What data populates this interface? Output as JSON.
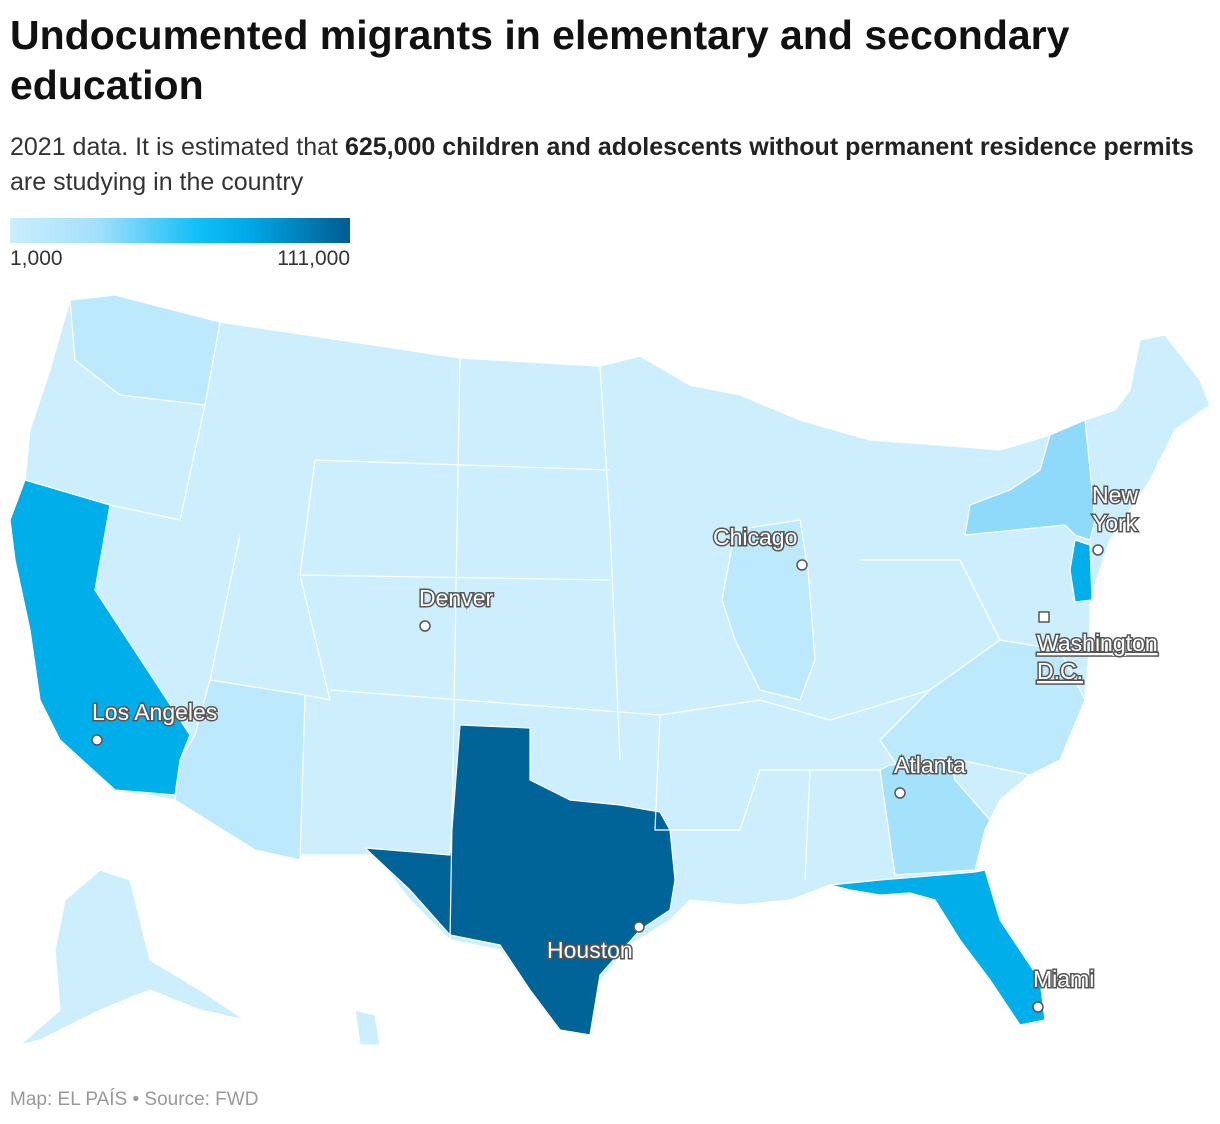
{
  "title": "Undocumented migrants in elementary and secondary education",
  "subtitle": {
    "pre": "2021 data. It is estimated that ",
    "bold": "625,000 children and adolescents without permanent residence permits",
    "post": " are studying in the country"
  },
  "legend": {
    "min": "1,000",
    "max": "111,000"
  },
  "colors": {
    "base": "#cdeffd",
    "light": "#bde9fc",
    "mid": "#a4e1fb",
    "ny": "#8fd9fb",
    "bright": "#00aeea",
    "dark": "#006498"
  },
  "cities": [
    {
      "name": "Los Angeles"
    },
    {
      "name": "Denver"
    },
    {
      "name": "Chicago"
    },
    {
      "name": "New York"
    },
    {
      "name": "Washington D.C."
    },
    {
      "name": "Atlanta"
    },
    {
      "name": "Houston"
    },
    {
      "name": "Miami"
    }
  ],
  "footer": "Map: EL PAÍS • Source: FWD"
}
